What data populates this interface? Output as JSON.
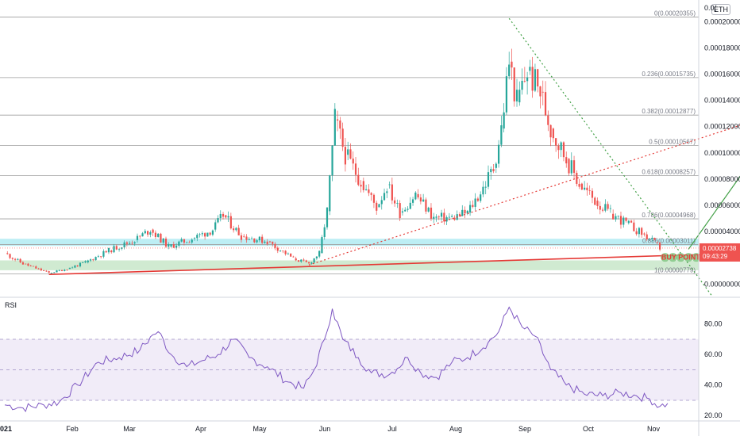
{
  "symbol_badge": "ETH",
  "buy_point_label": "BUY POINT",
  "colors": {
    "up": "#26a69a",
    "down": "#ef5350",
    "rsi_line": "#7e57c2",
    "rsi_band": "#ede7f6",
    "support_line": "#e53935",
    "resistance_zone": "#b2ebf2",
    "support_zone": "#c8e6c9",
    "fib_line": "#9e9e9e",
    "trend_dotted_red": "#e53935",
    "trend_dotted_green": "#43a047",
    "projection_arrow": "#43a047",
    "price_badge": "#ef5350"
  },
  "price_axis": {
    "ticks": [
      "0.00000000",
      "0.00002000",
      "0.00004000",
      "0.00006000",
      "0.00008000",
      "0.00010000",
      "0.00012000",
      "0.00014000",
      "0.00016000",
      "0.00018000",
      "0.00020000"
    ],
    "top_partial_label": "0.0(",
    "last_price": "0.00002738",
    "countdown": "09:43:29"
  },
  "time_axis": {
    "labels": [
      "021",
      "Feb",
      "Mar",
      "Apr",
      "May",
      "Jun",
      "Jul",
      "Aug",
      "Sep",
      "Oct",
      "Nov"
    ]
  },
  "fib_levels": [
    {
      "ratio": "0",
      "price": 0.00020355,
      "label": "0(0.00020355)"
    },
    {
      "ratio": "0.236",
      "price": 0.00015735,
      "label": "0.236(0.00015735)"
    },
    {
      "ratio": "0.382",
      "price": 0.00012877,
      "label": "0.382(0.00012877)"
    },
    {
      "ratio": "0.5",
      "price": 0.00010567,
      "label": "0.5(0.00010567)"
    },
    {
      "ratio": "0.618",
      "price": 8.257e-05,
      "label": "0.618(0.00008257)"
    },
    {
      "ratio": "0.786",
      "price": 4.968e-05,
      "label": "0.786(0.00004968)"
    },
    {
      "ratio": "0.886",
      "price": 3.011e-05,
      "label": "0.886(0.00003011)"
    },
    {
      "ratio": "1",
      "price": 7.79e-06,
      "label": "1(0.00000779)"
    }
  ],
  "rsi": {
    "title": "RSI",
    "ticks": [
      "20.00",
      "40.00",
      "60.00",
      "80.00"
    ],
    "levels": [
      70,
      50,
      30
    ],
    "ylim": [
      17,
      97
    ]
  },
  "chart_data": [
    {
      "type": "candlestick",
      "title": "",
      "ylim": [
        -9.5e-06,
        0.0002165
      ],
      "x_range_months": [
        "Jan 2021",
        "Nov 2021"
      ],
      "series": [
        {
          "kind": "close_path",
          "points": [
            [
              "2021-01-01",
              2.35e-05
            ],
            [
              "2021-01-08",
              1.55e-05
            ],
            [
              "2021-01-18",
              8.5e-06
            ],
            [
              "2021-01-25",
              1.15e-05
            ],
            [
              "2021-02-01",
              1.65e-05
            ],
            [
              "2021-02-10",
              2.55e-05
            ],
            [
              "2021-02-20",
              3.35e-05
            ],
            [
              "2021-02-26",
              4.15e-05
            ],
            [
              "2021-03-05",
              2.85e-05
            ],
            [
              "2021-03-14",
              3.45e-05
            ],
            [
              "2021-03-22",
              4.15e-05
            ],
            [
              "2021-03-26",
              5.25e-05
            ],
            [
              "2021-04-02",
              3.65e-05
            ],
            [
              "2021-04-12",
              3.25e-05
            ],
            [
              "2021-04-22",
              1.95e-05
            ],
            [
              "2021-04-28",
              1.55e-05
            ],
            [
              "2021-05-02",
              2.35e-05
            ],
            [
              "2021-05-05",
              5.55e-05
            ],
            [
              "2021-05-08",
              0.0001255
            ],
            [
              "2021-05-12",
              9.85e-05
            ],
            [
              "2021-05-18",
              7.85e-05
            ],
            [
              "2021-05-24",
              5.85e-05
            ],
            [
              "2021-05-28",
              7.55e-05
            ],
            [
              "2021-06-02",
              5.45e-05
            ],
            [
              "2021-06-08",
              6.85e-05
            ],
            [
              "2021-06-15",
              5.05e-05
            ],
            [
              "2021-06-22",
              5.05e-05
            ],
            [
              "2021-06-28",
              5.45e-05
            ],
            [
              "2021-07-04",
              7.35e-05
            ],
            [
              "2021-07-08",
              8.85e-05
            ],
            [
              "2021-07-11",
              0.0001185
            ],
            [
              "2021-07-14",
              0.0001695
            ],
            [
              "2021-07-17",
              0.0001385
            ],
            [
              "2021-07-21",
              0.0001625
            ],
            [
              "2021-07-26",
              0.0001465
            ],
            [
              "2021-07-30",
              0.0001185
            ],
            [
              "2021-08-05",
              9.55e-05
            ],
            [
              "2021-08-10",
              7.65e-05
            ],
            [
              "2021-08-16",
              6.35e-05
            ],
            [
              "2021-08-22",
              5.35e-05
            ],
            [
              "2021-08-28",
              4.65e-05
            ],
            [
              "2021-09-03",
              3.85e-05
            ],
            [
              "2021-09-08",
              3.15e-05
            ],
            [
              "2021-09-10",
              2.74e-05
            ]
          ]
        }
      ],
      "annotations": {
        "horizontal_zones": [
          {
            "name": "resistance",
            "from": 2.9e-05,
            "to": 3.45e-05
          },
          {
            "name": "support",
            "from": 1.05e-05,
            "to": 1.8e-05
          }
        ],
        "trendlines": [
          {
            "name": "long-support",
            "points": [
              [
                "2021-01-18",
                7.3e-06
              ],
              [
                "2021-11-15",
                2.55e-05
              ]
            ]
          },
          {
            "name": "rising-dotted",
            "points": [
              [
                "2021-04-28",
                1.45e-05
              ],
              [
                "2021-11-15",
                0.0001435
              ]
            ]
          },
          {
            "name": "falling-dotted",
            "points": [
              [
                "2021-07-14",
                0.0002025
              ],
              [
                "2021-09-30",
                -9e-06
              ]
            ]
          }
        ],
        "projection_arrow": {
          "from": [
            "2021-09-21",
            2.65e-05
          ],
          "to": [
            "2021-10-28",
            0.00013
          ]
        },
        "buy_points": [
          "2021-09-12",
          "2021-09-15",
          "2021-09-18",
          "2021-09-21",
          "2021-09-24"
        ]
      }
    },
    {
      "type": "line",
      "title": "RSI",
      "ylim": [
        17,
        97
      ],
      "series": [
        {
          "name": "RSI",
          "points": [
            [
              "2021-01-01",
              27
            ],
            [
              "2021-01-08",
              25
            ],
            [
              "2021-01-16",
              27
            ],
            [
              "2021-01-22",
              29
            ],
            [
              "2021-01-29",
              40
            ],
            [
              "2021-02-06",
              55
            ],
            [
              "2021-02-14",
              58
            ],
            [
              "2021-02-22",
              63
            ],
            [
              "2021-02-27",
              73
            ],
            [
              "2021-03-01",
              75
            ],
            [
              "2021-03-06",
              60
            ],
            [
              "2021-03-12",
              52
            ],
            [
              "2021-03-18",
              56
            ],
            [
              "2021-03-24",
              60
            ],
            [
              "2021-03-30",
              70
            ],
            [
              "2021-04-05",
              58
            ],
            [
              "2021-04-12",
              52
            ],
            [
              "2021-04-20",
              42
            ],
            [
              "2021-04-26",
              38
            ],
            [
              "2021-04-30",
              50
            ],
            [
              "2021-05-04",
              70
            ],
            [
              "2021-05-07",
              90
            ],
            [
              "2021-05-11",
              70
            ],
            [
              "2021-05-17",
              58
            ],
            [
              "2021-05-22",
              48
            ],
            [
              "2021-05-29",
              47
            ],
            [
              "2021-06-05",
              58
            ],
            [
              "2021-06-10",
              48
            ],
            [
              "2021-06-16",
              45
            ],
            [
              "2021-06-22",
              55
            ],
            [
              "2021-06-28",
              58
            ],
            [
              "2021-07-06",
              68
            ],
            [
              "2021-07-10",
              75
            ],
            [
              "2021-07-14",
              91
            ],
            [
              "2021-07-19",
              78
            ],
            [
              "2021-07-24",
              72
            ],
            [
              "2021-07-30",
              50
            ],
            [
              "2021-08-05",
              40
            ],
            [
              "2021-08-12",
              34
            ],
            [
              "2021-08-19",
              33
            ],
            [
              "2021-08-26",
              35
            ],
            [
              "2021-09-01",
              33
            ],
            [
              "2021-09-06",
              31
            ],
            [
              "2021-09-10",
              26
            ],
            [
              "2021-09-13",
              28
            ]
          ]
        }
      ]
    }
  ]
}
